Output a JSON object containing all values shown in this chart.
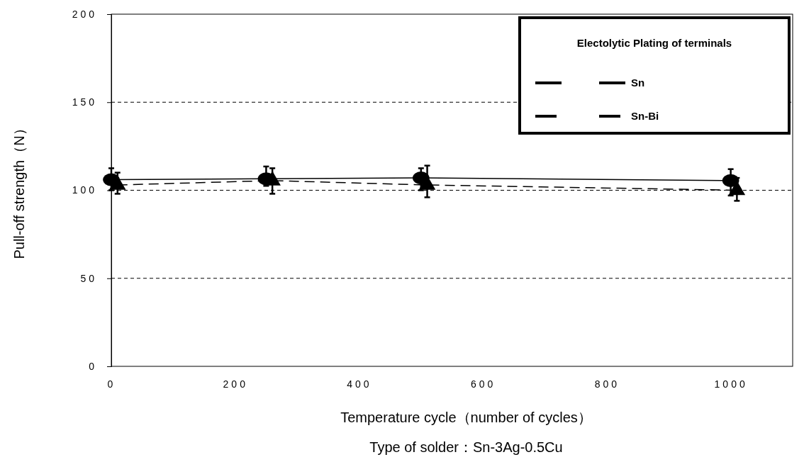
{
  "chart_data": {
    "type": "line",
    "xlabel": "Temperature cycle（number of cycles）",
    "ylabel": "Pull-off strength（N）",
    "legend_title": "Electolytic Plating of terminals",
    "annotations": [
      "Type of solder：Sn-3Ag-0.5Cu"
    ],
    "xlim": [
      0,
      1100
    ],
    "xticks": [
      0,
      200,
      400,
      600,
      800,
      1000
    ],
    "ylim": [
      0,
      200
    ],
    "yticks": [
      0,
      50,
      100,
      150,
      200
    ],
    "grid": "y",
    "legend": "top right",
    "series": [
      {
        "name": "Sn",
        "color": "#000000",
        "marker": "circle",
        "line_style": "solid",
        "x": [
          0,
          250,
          500,
          1000
        ],
        "values": [
          106,
          106.5,
          107,
          105.5
        ],
        "errors": [
          [
            100,
            112.5
          ],
          [
            102.5,
            113.5
          ],
          [
            100,
            112.5
          ],
          [
            97,
            112
          ]
        ]
      },
      {
        "name": "Sn-Bi",
        "color": "#000000",
        "marker": "triangle",
        "line_style": "dashed",
        "x": [
          10,
          260,
          510,
          1010
        ],
        "values": [
          103,
          105.5,
          103,
          100
        ],
        "errors": [
          [
            98,
            110
          ],
          [
            98,
            112.5
          ],
          [
            96,
            114
          ],
          [
            94,
            107
          ]
        ]
      }
    ]
  }
}
